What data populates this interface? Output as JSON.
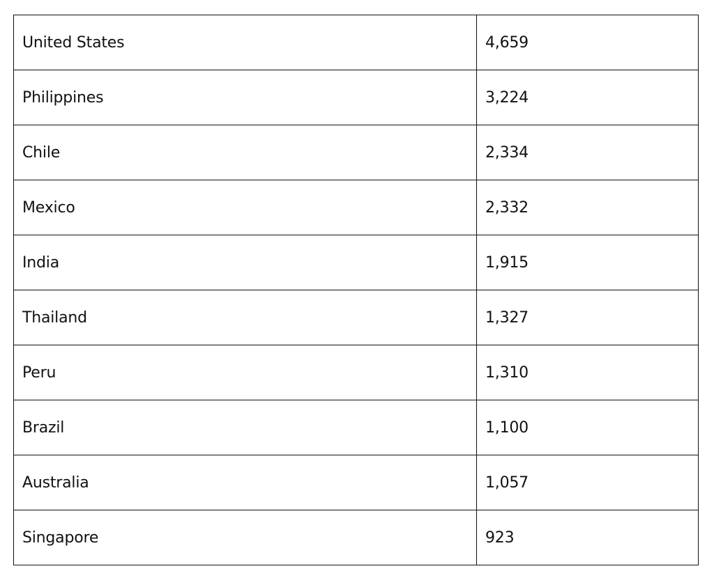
{
  "table": {
    "rows": [
      {
        "country": "United States",
        "value": "4,659"
      },
      {
        "country": "Philippines",
        "value": "3,224"
      },
      {
        "country": "Chile",
        "value": "2,334"
      },
      {
        "country": "Mexico",
        "value": "2,332"
      },
      {
        "country": "India",
        "value": "1,915"
      },
      {
        "country": "Thailand",
        "value": "1,327"
      },
      {
        "country": "Peru",
        "value": "1,310"
      },
      {
        "country": "Brazil",
        "value": "1,100"
      },
      {
        "country": "Australia",
        "value": "1,057"
      },
      {
        "country": "Singapore",
        "value": "923"
      }
    ]
  }
}
